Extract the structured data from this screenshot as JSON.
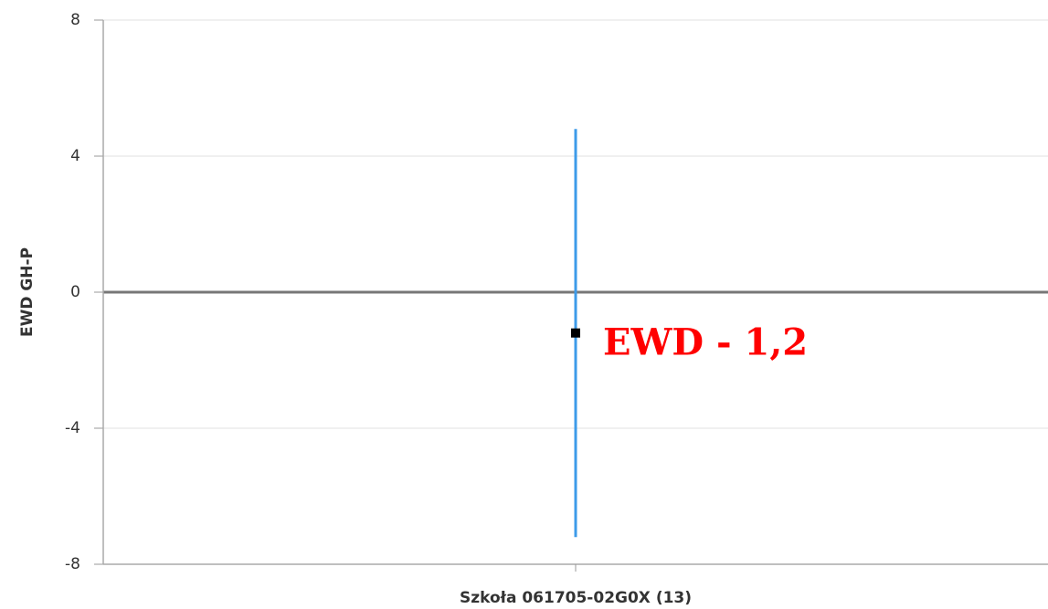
{
  "chart_data": {
    "type": "errorbar",
    "ylabel": "EWD GH-P",
    "categories": [
      "Szkoła 061705-02G0X (13)"
    ],
    "values": [
      -1.2
    ],
    "errors": [
      6.0
    ],
    "value_labels": [
      "EWD - 1,2"
    ],
    "color": "#3d9be9",
    "marker_color": "#000000",
    "ylim": [
      -8,
      8
    ],
    "yticks": [
      -8,
      -4,
      0,
      4,
      8
    ],
    "grid": true
  }
}
